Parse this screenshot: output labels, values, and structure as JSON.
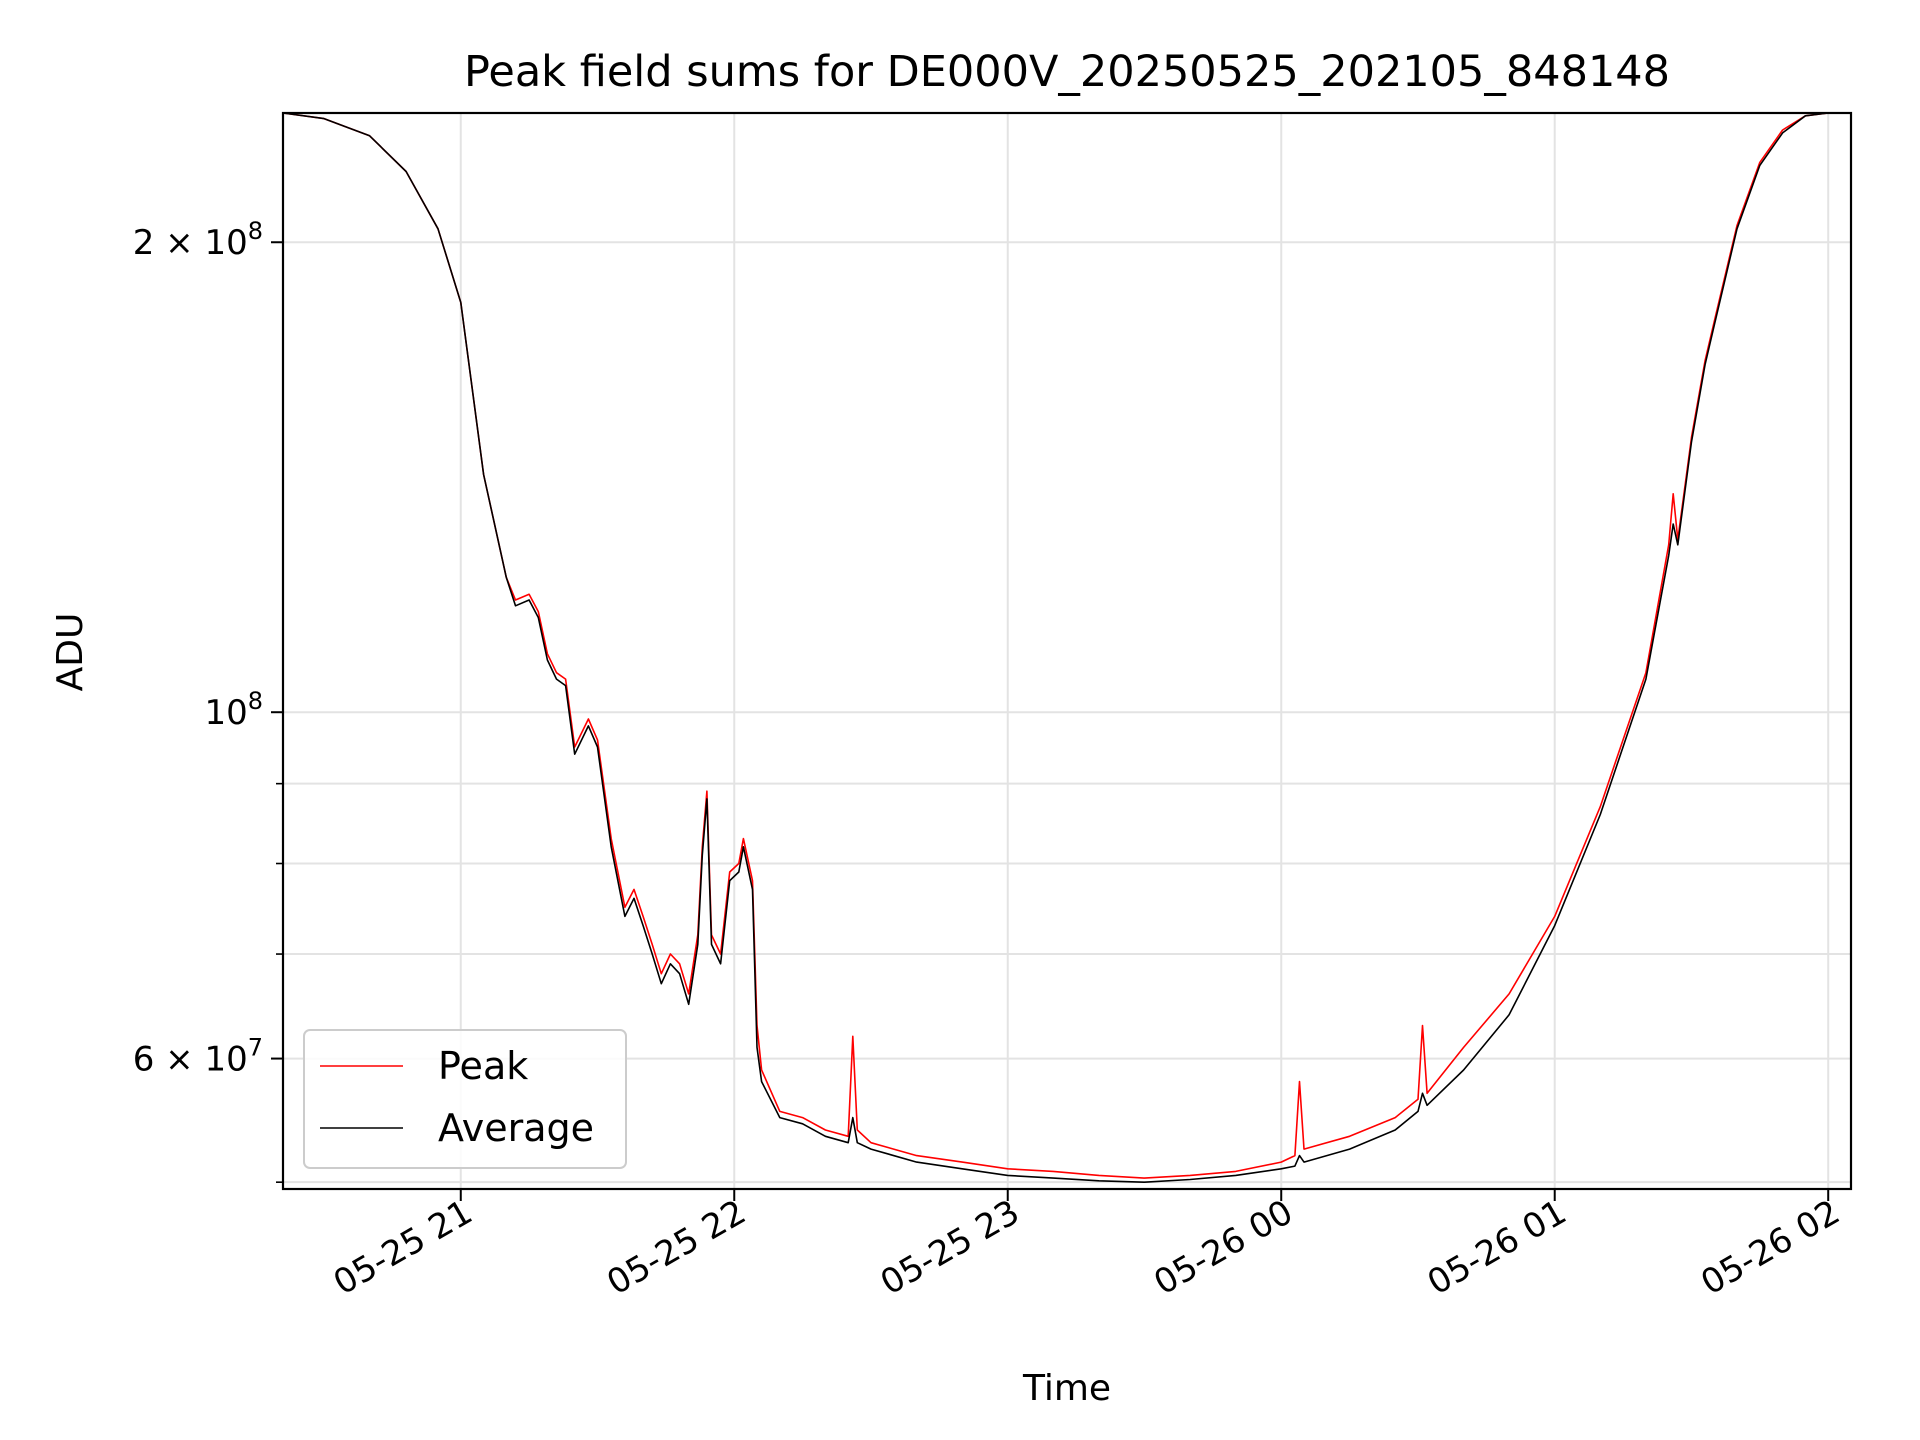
{
  "chart_data": {
    "type": "line",
    "title": "Peak field sums for DE000V_20250525_202105_848148",
    "xlabel": "Time",
    "ylabel": "ADU",
    "y_scale": "log",
    "grid": true,
    "legend_position": "lower-left",
    "xlim": [
      "2025-05-25 20:21",
      "2025-05-26 02:05"
    ],
    "ylim": [
      49500000,
      242000000
    ],
    "x_ticks": [
      {
        "value": "2025-05-25 21:00",
        "label": "05-25 21"
      },
      {
        "value": "2025-05-25 22:00",
        "label": "05-25 22"
      },
      {
        "value": "2025-05-25 23:00",
        "label": "05-25 23"
      },
      {
        "value": "2025-05-26 00:00",
        "label": "05-26 00"
      },
      {
        "value": "2025-05-26 01:00",
        "label": "05-26 01"
      },
      {
        "value": "2025-05-26 02:00",
        "label": "05-26 02"
      }
    ],
    "y_major_ticks": [
      {
        "value": 60000000,
        "base": "6 × 10",
        "exp": "7"
      },
      {
        "value": 100000000,
        "base": "10",
        "exp": "8"
      },
      {
        "value": 200000000,
        "base": "2 × 10",
        "exp": "8"
      }
    ],
    "y_minor_ticks": [
      50000000,
      70000000,
      80000000,
      90000000
    ],
    "series": [
      {
        "name": "Peak",
        "color": "#ff0000",
        "x": [
          "2025-05-25 20:21",
          "2025-05-25 20:30",
          "2025-05-25 20:40",
          "2025-05-25 20:48",
          "2025-05-25 20:55",
          "2025-05-25 21:00",
          "2025-05-25 21:05",
          "2025-05-25 21:10",
          "2025-05-25 21:12",
          "2025-05-25 21:15",
          "2025-05-25 21:17",
          "2025-05-25 21:19",
          "2025-05-25 21:21",
          "2025-05-25 21:23",
          "2025-05-25 21:25",
          "2025-05-25 21:28",
          "2025-05-25 21:30",
          "2025-05-25 21:33",
          "2025-05-25 21:36",
          "2025-05-25 21:38",
          "2025-05-25 21:40",
          "2025-05-25 21:42",
          "2025-05-25 21:44",
          "2025-05-25 21:46",
          "2025-05-25 21:48",
          "2025-05-25 21:50",
          "2025-05-25 21:52",
          "2025-05-25 21:53",
          "2025-05-25 21:54",
          "2025-05-25 21:55",
          "2025-05-25 21:57",
          "2025-05-25 21:59",
          "2025-05-25 22:01",
          "2025-05-25 22:02",
          "2025-05-25 22:04",
          "2025-05-25 22:05",
          "2025-05-25 22:06",
          "2025-05-25 22:10",
          "2025-05-25 22:15",
          "2025-05-25 22:20",
          "2025-05-25 22:25",
          "2025-05-25 22:26",
          "2025-05-25 22:27",
          "2025-05-25 22:30",
          "2025-05-25 22:40",
          "2025-05-25 22:50",
          "2025-05-25 23:00",
          "2025-05-25 23:10",
          "2025-05-25 23:20",
          "2025-05-25 23:30",
          "2025-05-25 23:40",
          "2025-05-25 23:50",
          "2025-05-26 00:00",
          "2025-05-26 00:03",
          "2025-05-26 00:04",
          "2025-05-26 00:05",
          "2025-05-26 00:15",
          "2025-05-26 00:25",
          "2025-05-26 00:30",
          "2025-05-26 00:31",
          "2025-05-26 00:32",
          "2025-05-26 00:40",
          "2025-05-26 00:50",
          "2025-05-26 01:00",
          "2025-05-26 01:10",
          "2025-05-26 01:20",
          "2025-05-26 01:25",
          "2025-05-26 01:26",
          "2025-05-26 01:27",
          "2025-05-26 01:30",
          "2025-05-26 01:33",
          "2025-05-26 01:35",
          "2025-05-26 01:40",
          "2025-05-26 01:45",
          "2025-05-26 01:50",
          "2025-05-26 01:55",
          "2025-05-26 02:00"
        ],
        "y": [
          242000000,
          240000000,
          234000000,
          222000000,
          204000000,
          183000000,
          142000000,
          122000000,
          118000000,
          119000000,
          116000000,
          109000000,
          106000000,
          105000000,
          95000000,
          99000000,
          96000000,
          83000000,
          75000000,
          77000000,
          74000000,
          71000000,
          68000000,
          70000000,
          69000000,
          66000000,
          72000000,
          82000000,
          89000000,
          72000000,
          70000000,
          79000000,
          80000000,
          83000000,
          78000000,
          63000000,
          59000000,
          55500000,
          55000000,
          54000000,
          53500000,
          62000000,
          54000000,
          53000000,
          52000000,
          51500000,
          51000000,
          50800000,
          50500000,
          50300000,
          50500000,
          50800000,
          51500000,
          52000000,
          58000000,
          52500000,
          53500000,
          55000000,
          56500000,
          63000000,
          57000000,
          61000000,
          66000000,
          74000000,
          87000000,
          106000000,
          128000000,
          138000000,
          129000000,
          150000000,
          168000000,
          178000000,
          205000000,
          225000000,
          236000000,
          241000000,
          242000000
        ]
      },
      {
        "name": "Average",
        "color": "#000000",
        "x": [
          "2025-05-25 20:21",
          "2025-05-25 20:30",
          "2025-05-25 20:40",
          "2025-05-25 20:48",
          "2025-05-25 20:55",
          "2025-05-25 21:00",
          "2025-05-25 21:05",
          "2025-05-25 21:10",
          "2025-05-25 21:12",
          "2025-05-25 21:15",
          "2025-05-25 21:17",
          "2025-05-25 21:19",
          "2025-05-25 21:21",
          "2025-05-25 21:23",
          "2025-05-25 21:25",
          "2025-05-25 21:28",
          "2025-05-25 21:30",
          "2025-05-25 21:33",
          "2025-05-25 21:36",
          "2025-05-25 21:38",
          "2025-05-25 21:40",
          "2025-05-25 21:42",
          "2025-05-25 21:44",
          "2025-05-25 21:46",
          "2025-05-25 21:48",
          "2025-05-25 21:50",
          "2025-05-25 21:52",
          "2025-05-25 21:53",
          "2025-05-25 21:54",
          "2025-05-25 21:55",
          "2025-05-25 21:57",
          "2025-05-25 21:59",
          "2025-05-25 22:01",
          "2025-05-25 22:02",
          "2025-05-25 22:04",
          "2025-05-25 22:05",
          "2025-05-25 22:06",
          "2025-05-25 22:10",
          "2025-05-25 22:15",
          "2025-05-25 22:20",
          "2025-05-25 22:25",
          "2025-05-25 22:26",
          "2025-05-25 22:27",
          "2025-05-25 22:30",
          "2025-05-25 22:40",
          "2025-05-25 22:50",
          "2025-05-25 23:00",
          "2025-05-25 23:10",
          "2025-05-25 23:20",
          "2025-05-25 23:30",
          "2025-05-25 23:40",
          "2025-05-25 23:50",
          "2025-05-26 00:00",
          "2025-05-26 00:03",
          "2025-05-26 00:04",
          "2025-05-26 00:05",
          "2025-05-26 00:15",
          "2025-05-26 00:25",
          "2025-05-26 00:30",
          "2025-05-26 00:31",
          "2025-05-26 00:32",
          "2025-05-26 00:40",
          "2025-05-26 00:50",
          "2025-05-26 01:00",
          "2025-05-26 01:10",
          "2025-05-26 01:20",
          "2025-05-26 01:25",
          "2025-05-26 01:26",
          "2025-05-26 01:27",
          "2025-05-26 01:30",
          "2025-05-26 01:33",
          "2025-05-26 01:35",
          "2025-05-26 01:40",
          "2025-05-26 01:45",
          "2025-05-26 01:50",
          "2025-05-26 01:55",
          "2025-05-26 02:00"
        ],
        "y": [
          242000000,
          240000000,
          234000000,
          222000000,
          204000000,
          183000000,
          142000000,
          122000000,
          117000000,
          118000000,
          115000000,
          108000000,
          105000000,
          104000000,
          94000000,
          98000000,
          95000000,
          82000000,
          74000000,
          76000000,
          73000000,
          70000000,
          67000000,
          69000000,
          68000000,
          65000000,
          71000000,
          81000000,
          88000000,
          71000000,
          69000000,
          78000000,
          79000000,
          82000000,
          77000000,
          61000000,
          58000000,
          55000000,
          54500000,
          53500000,
          53000000,
          55000000,
          53000000,
          52500000,
          51500000,
          51000000,
          50500000,
          50300000,
          50100000,
          50000000,
          50200000,
          50500000,
          51000000,
          51200000,
          52000000,
          51500000,
          52500000,
          54000000,
          55500000,
          57000000,
          56000000,
          59000000,
          64000000,
          73000000,
          86000000,
          105000000,
          126000000,
          132000000,
          128000000,
          149000000,
          167000000,
          177000000,
          204000000,
          224000000,
          235000000,
          241000000,
          242000000
        ]
      }
    ]
  }
}
